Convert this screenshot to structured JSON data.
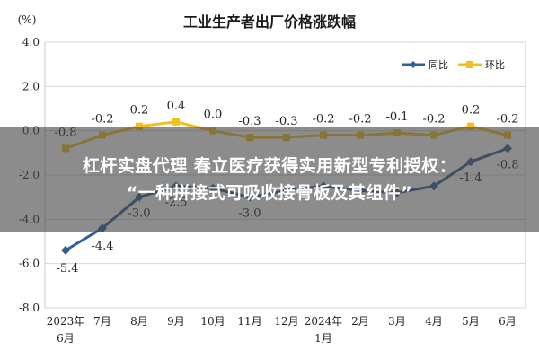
{
  "chart_data": {
    "type": "line",
    "title": "工业生产者出厂价格涨跌幅",
    "unit": "(%)",
    "categories": [
      [
        "2023年",
        "6月"
      ],
      [
        "7月"
      ],
      [
        "8月"
      ],
      [
        "9月"
      ],
      [
        "10月"
      ],
      [
        "11月"
      ],
      [
        "12月"
      ],
      [
        "2024年",
        "1月"
      ],
      [
        "2月"
      ],
      [
        "3月"
      ],
      [
        "4月"
      ],
      [
        "5月"
      ],
      [
        "6月"
      ]
    ],
    "ylim": [
      -8.0,
      4.0
    ],
    "yticks": [
      "4.0",
      "2.0",
      "0.0",
      "-2.0",
      "-4.0",
      "-6.0",
      "-8.0"
    ],
    "ytick_values": [
      4,
      2,
      0,
      -2,
      -4,
      -6,
      -8
    ],
    "grid": true,
    "legend_position": "top-right",
    "series": [
      {
        "name": "同比",
        "color": "#2f5f9a",
        "values": [
          -5.4,
          -4.4,
          -3.0,
          -2.5,
          -2.6,
          -3.0,
          -2.7,
          -2.5,
          -2.7,
          -2.8,
          -2.5,
          -1.4,
          -0.8
        ],
        "labels": [
          "-5.4",
          "-4.4",
          "-3.0",
          "-2.5",
          "",
          "-3.0",
          "",
          "",
          "",
          "",
          "",
          "-1.4",
          "-0.8"
        ]
      },
      {
        "name": "环比",
        "color": "#f2c01e",
        "values": [
          -0.8,
          -0.2,
          0.2,
          0.4,
          0.0,
          -0.3,
          -0.3,
          -0.2,
          -0.2,
          -0.1,
          -0.2,
          0.2,
          -0.2
        ],
        "labels": [
          "-0.8",
          "-0.2",
          "0.2",
          "0.4",
          "0.0",
          "-0.3",
          "-0.3",
          "-0.2",
          "-0.2",
          "-0.1",
          "-0.2",
          "0.2",
          "-0.2"
        ]
      }
    ]
  },
  "overlay": {
    "headline_line1": "杠杆实盘代理 春立医疗获得实用新型专利授权：",
    "headline_line2": "“一种拼接式可吸收接骨板及其组件”"
  }
}
